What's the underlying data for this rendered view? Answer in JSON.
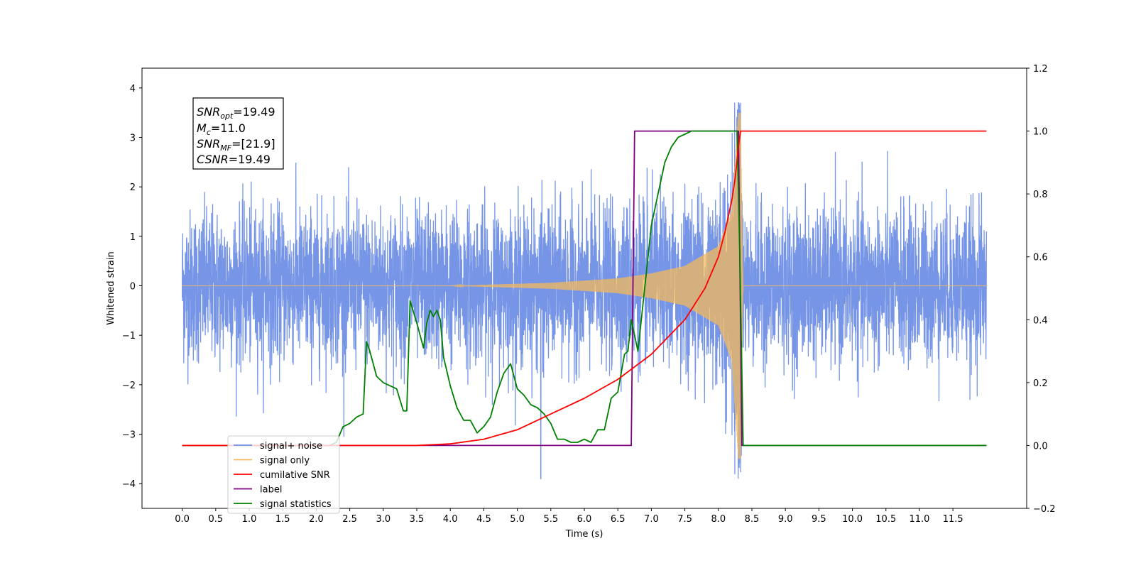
{
  "chart_data": {
    "type": "line",
    "xlabel": "Time (s)",
    "ylabel_left": "Whitened strain",
    "ylabel_right": "",
    "xlim": [
      -0.6,
      12.6
    ],
    "ylim_left": [
      -4.5,
      4.4
    ],
    "ylim_right": [
      -0.2,
      1.2
    ],
    "x_ticks": [
      "0.0",
      "0.5",
      "1.0",
      "1.5",
      "2.0",
      "2.5",
      "3.0",
      "3.5",
      "4.0",
      "4.5",
      "5.0",
      "5.5",
      "6.0",
      "6.5",
      "7.0",
      "7.5",
      "8.0",
      "8.5",
      "9.0",
      "9.5",
      "10.0",
      "10.5",
      "11.0",
      "11.5"
    ],
    "y_ticks_left": [
      "4",
      "3",
      "2",
      "1",
      "0",
      "−1",
      "−2",
      "−3",
      "−4"
    ],
    "y_ticks_right": [
      "1.2",
      "1.0",
      "0.8",
      "0.6",
      "0.4",
      "0.2",
      "0.0",
      "−0.2"
    ],
    "grid": false,
    "legend_position": "bottom-left",
    "annotation": {
      "line1": {
        "main": "SNR",
        "sub": "opt",
        "rest": "=19.49"
      },
      "line2": {
        "main": "M",
        "sub": "c",
        "rest": "=11.0"
      },
      "line3": {
        "main": "SNR",
        "sub": "MF",
        "rest": "=[21.9]"
      },
      "line4": {
        "main": "CSNR",
        "sub": "",
        "rest": "=19.49"
      }
    },
    "series": [
      {
        "name": "signal+ noise",
        "axis": "left",
        "color": "#6f8fe6",
        "description_values": {
          "duration": [
            0.0,
            12.0
          ],
          "noise_std": 0.8,
          "peak": {
            "x": 8.3,
            "y": 4.0
          },
          "trough": {
            "x": 5.35,
            "y": -4.1
          }
        }
      },
      {
        "name": "signal only",
        "axis": "left",
        "color": "#f5b95c",
        "description_values": {
          "chirp_start": 4.0,
          "merger_time": 8.33,
          "envelope_at": [
            [
              4.5,
              0.02
            ],
            [
              5.5,
              0.06
            ],
            [
              6.5,
              0.15
            ],
            [
              7.0,
              0.25
            ],
            [
              7.5,
              0.4
            ],
            [
              8.0,
              0.8
            ],
            [
              8.2,
              1.5
            ],
            [
              8.3,
              3.5
            ]
          ]
        }
      },
      {
        "name": "cumilative SNR",
        "axis": "right",
        "color": "#ff0000",
        "x": [
          0.0,
          3.5,
          4.0,
          4.5,
          5.0,
          5.5,
          6.0,
          6.5,
          7.0,
          7.5,
          7.8,
          8.0,
          8.1,
          8.2,
          8.25,
          8.3,
          8.33,
          8.35,
          12.0
        ],
        "values": [
          0.0,
          0.0,
          0.005,
          0.02,
          0.05,
          0.1,
          0.15,
          0.21,
          0.29,
          0.4,
          0.5,
          0.6,
          0.68,
          0.78,
          0.85,
          0.95,
          1.0,
          1.0,
          1.0
        ]
      },
      {
        "name": "label",
        "axis": "right",
        "color": "#800080",
        "x": [
          0.0,
          6.7,
          6.75,
          8.3,
          8.35,
          12.0
        ],
        "values": [
          0.0,
          0.0,
          1.0,
          1.0,
          0.0,
          0.0
        ]
      },
      {
        "name": "signal statistics",
        "axis": "right",
        "color": "#008000",
        "x": [
          0.0,
          2.2,
          2.3,
          2.4,
          2.5,
          2.6,
          2.7,
          2.75,
          2.8,
          2.9,
          3.0,
          3.2,
          3.3,
          3.35,
          3.4,
          3.5,
          3.6,
          3.65,
          3.7,
          3.75,
          3.8,
          3.85,
          3.9,
          4.0,
          4.1,
          4.2,
          4.3,
          4.4,
          4.5,
          4.6,
          4.7,
          4.8,
          4.9,
          5.0,
          5.1,
          5.2,
          5.3,
          5.4,
          5.5,
          5.6,
          5.7,
          5.8,
          5.9,
          6.0,
          6.1,
          6.2,
          6.3,
          6.4,
          6.5,
          6.6,
          6.65,
          6.7,
          6.8,
          6.9,
          7.0,
          7.1,
          7.2,
          7.3,
          7.4,
          7.5,
          7.6,
          8.28,
          8.32,
          8.37,
          12.0
        ],
        "values": [
          0.0,
          0.0,
          0.01,
          0.06,
          0.07,
          0.09,
          0.1,
          0.33,
          0.3,
          0.22,
          0.2,
          0.18,
          0.11,
          0.11,
          0.46,
          0.39,
          0.31,
          0.39,
          0.43,
          0.41,
          0.43,
          0.4,
          0.28,
          0.19,
          0.12,
          0.08,
          0.08,
          0.04,
          0.06,
          0.09,
          0.17,
          0.23,
          0.26,
          0.18,
          0.16,
          0.13,
          0.12,
          0.1,
          0.07,
          0.02,
          0.02,
          0.01,
          0.01,
          0.02,
          0.01,
          0.05,
          0.05,
          0.15,
          0.17,
          0.29,
          0.3,
          0.4,
          0.3,
          0.5,
          0.7,
          0.8,
          0.9,
          0.95,
          0.98,
          0.99,
          1.0,
          1.0,
          0.6,
          0.0,
          0.0
        ]
      }
    ]
  }
}
